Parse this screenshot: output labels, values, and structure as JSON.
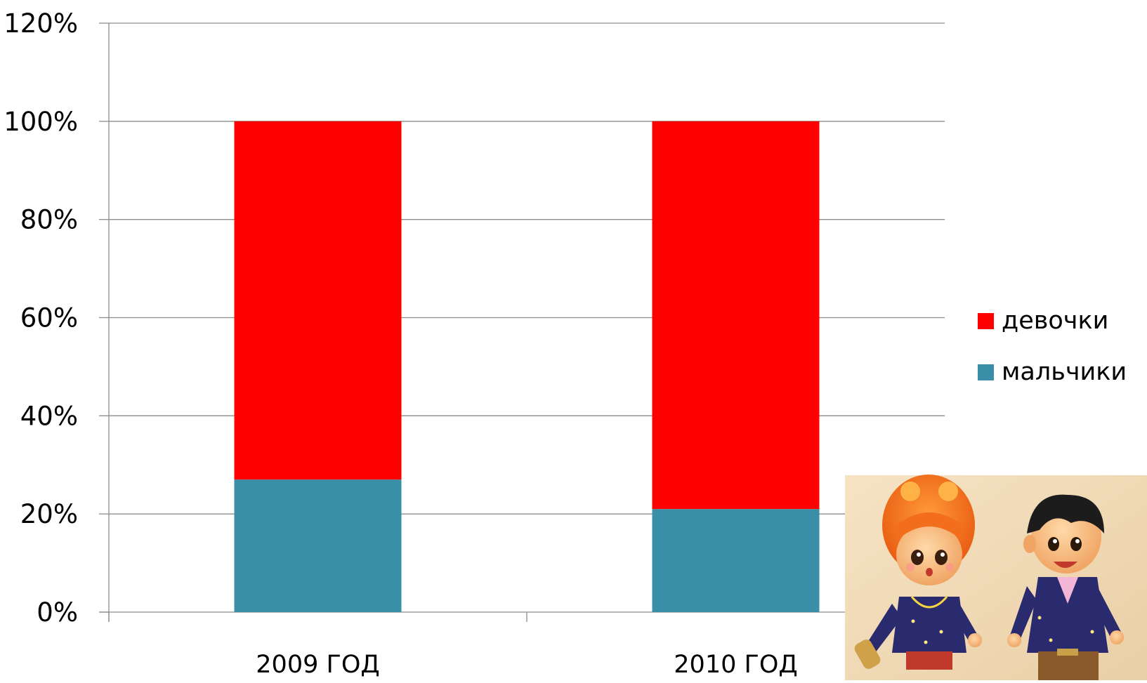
{
  "chart_data": {
    "type": "bar",
    "stacked": true,
    "categories": [
      "2009 ГОД",
      "2010 ГОД"
    ],
    "series": [
      {
        "name": "мальчики",
        "values": [
          27,
          21
        ],
        "color": "#3a8fa8"
      },
      {
        "name": "девочки",
        "values": [
          73,
          79
        ],
        "color": "#ff0000"
      }
    ],
    "y_tick_labels": [
      "0%",
      "20%",
      "40%",
      "60%",
      "80%",
      "100%",
      "120%"
    ],
    "ylim": [
      0,
      120
    ],
    "grid": true,
    "legend_position": "right",
    "legend_order": [
      "девочки",
      "мальчики"
    ],
    "picture": "cartoon-girl-and-boy"
  }
}
